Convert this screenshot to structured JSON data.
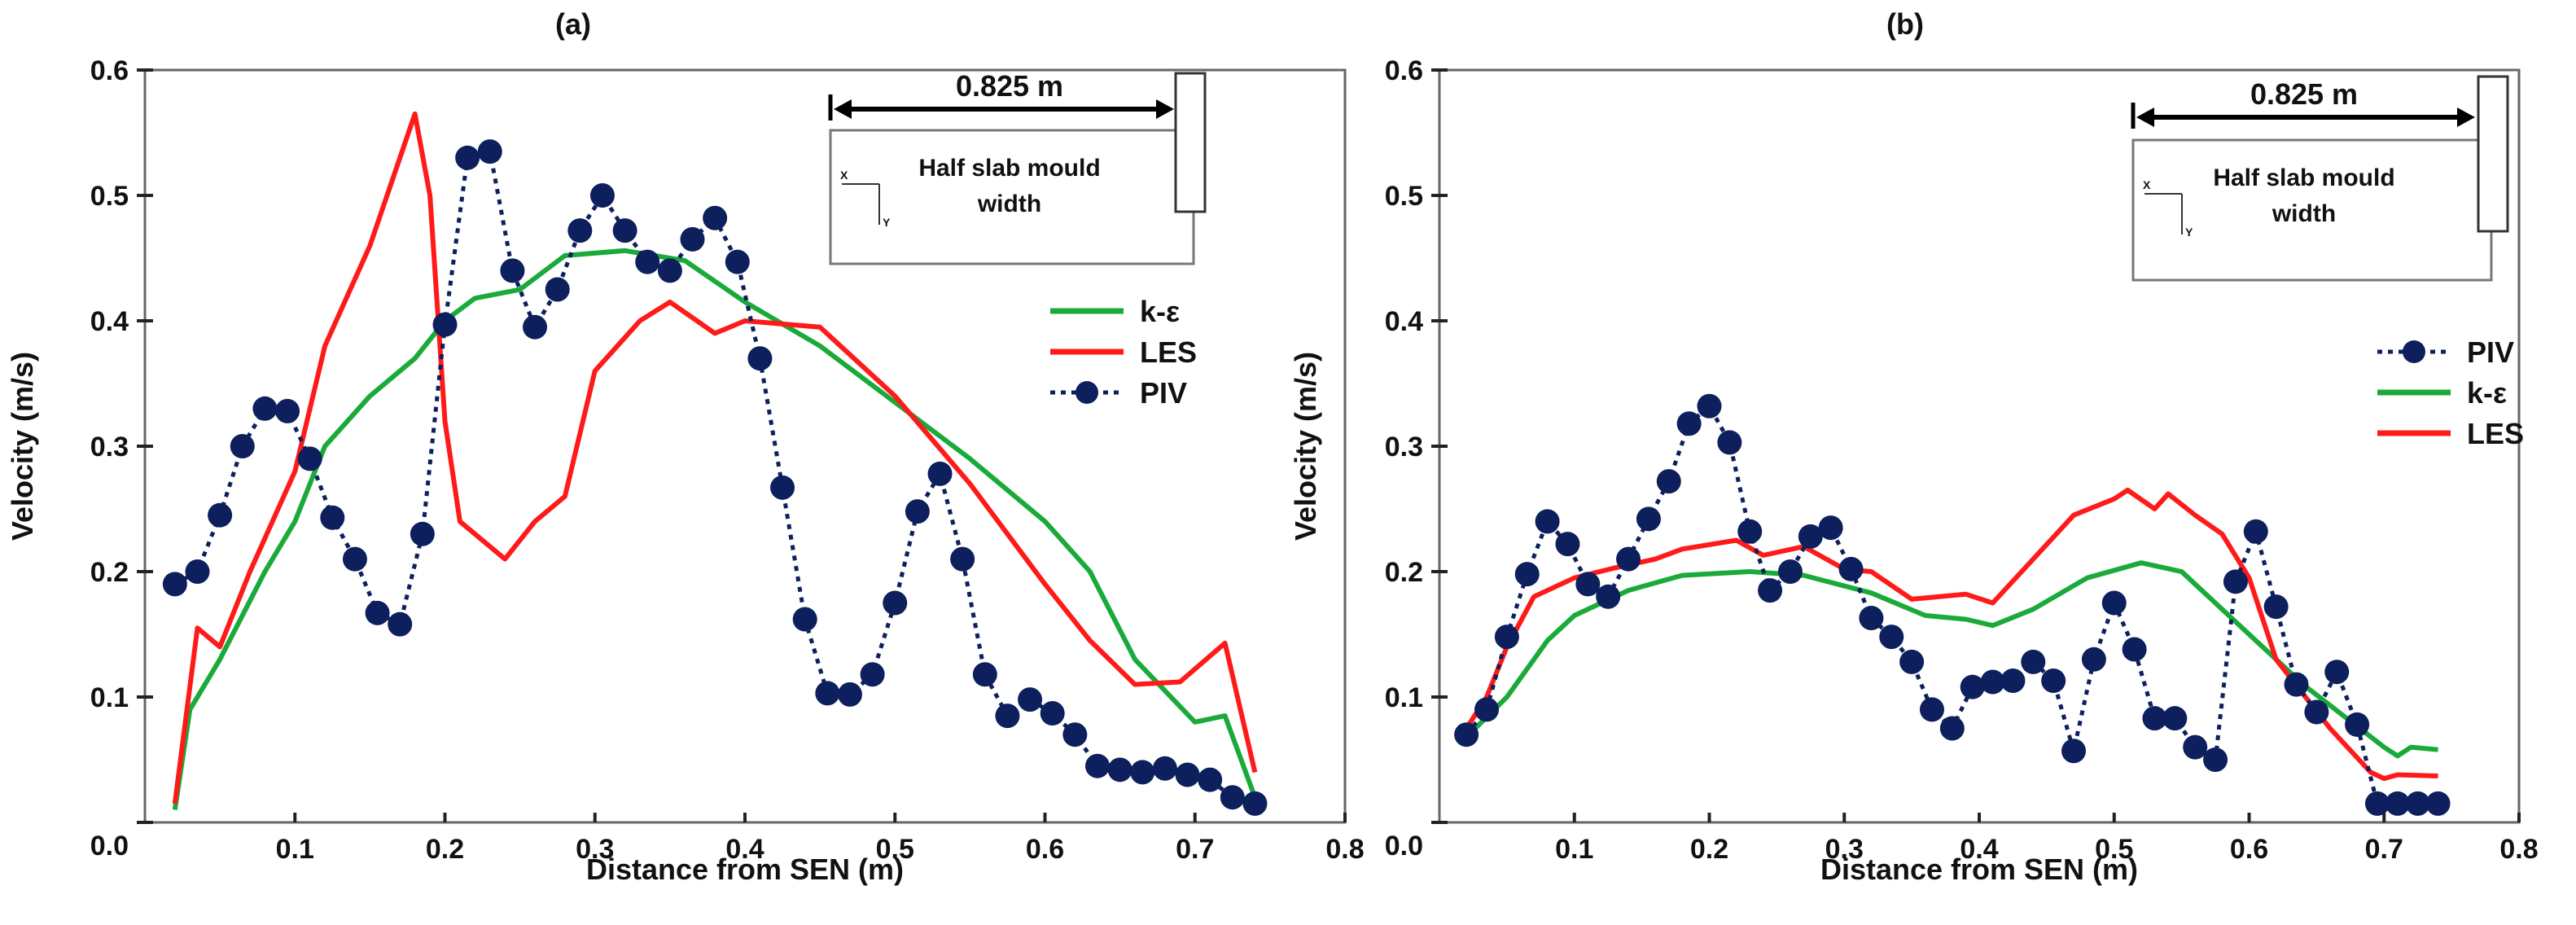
{
  "chart_data": [
    {
      "type": "line",
      "title": "(a)",
      "xlabel": "Distance from SEN (m)",
      "ylabel": "Velocity (m/s)",
      "xlim": [
        0,
        0.8
      ],
      "ylim": [
        0,
        0.6
      ],
      "xticks": [
        "0.1",
        "0.2",
        "0.3",
        "0.4",
        "0.5",
        "0.6",
        "0.7",
        "0.8"
      ],
      "yticks": [
        "0.0",
        "0.1",
        "0.2",
        "0.3",
        "0.4",
        "0.5",
        "0.6"
      ],
      "grid": false,
      "legend_position": "right",
      "legend_order": [
        "k-ε",
        "LES",
        "PIV"
      ],
      "inset": {
        "dimension": "0.825 m",
        "label_line1": "Half slab mould",
        "label_line2": "width",
        "axis_x": "X",
        "axis_y": "Y"
      },
      "series": [
        {
          "name": "k-ε",
          "color": "#1aaa3a",
          "style": "solid",
          "x": [
            0.02,
            0.03,
            0.05,
            0.08,
            0.1,
            0.12,
            0.15,
            0.18,
            0.2,
            0.22,
            0.25,
            0.28,
            0.32,
            0.36,
            0.4,
            0.45,
            0.5,
            0.55,
            0.6,
            0.63,
            0.66,
            0.7,
            0.72,
            0.74
          ],
          "y": [
            0.01,
            0.09,
            0.13,
            0.2,
            0.24,
            0.3,
            0.34,
            0.37,
            0.4,
            0.418,
            0.425,
            0.452,
            0.456,
            0.448,
            0.415,
            0.38,
            0.335,
            0.29,
            0.24,
            0.2,
            0.13,
            0.08,
            0.085,
            0.02
          ]
        },
        {
          "name": "LES",
          "color": "#ff1a1a",
          "style": "solid",
          "x": [
            0.02,
            0.035,
            0.05,
            0.07,
            0.1,
            0.12,
            0.15,
            0.18,
            0.19,
            0.2,
            0.21,
            0.24,
            0.26,
            0.28,
            0.3,
            0.33,
            0.35,
            0.38,
            0.4,
            0.45,
            0.5,
            0.55,
            0.6,
            0.63,
            0.66,
            0.69,
            0.72,
            0.74
          ],
          "y": [
            0.015,
            0.155,
            0.14,
            0.2,
            0.28,
            0.38,
            0.46,
            0.565,
            0.5,
            0.32,
            0.24,
            0.21,
            0.24,
            0.26,
            0.36,
            0.4,
            0.415,
            0.39,
            0.4,
            0.395,
            0.34,
            0.27,
            0.19,
            0.145,
            0.11,
            0.112,
            0.143,
            0.04
          ]
        },
        {
          "name": "PIV",
          "color": "#0d1f5c",
          "style": "dotted-markers",
          "x": [
            0.02,
            0.035,
            0.05,
            0.065,
            0.08,
            0.095,
            0.11,
            0.125,
            0.14,
            0.155,
            0.17,
            0.185,
            0.2,
            0.215,
            0.23,
            0.245,
            0.26,
            0.275,
            0.29,
            0.305,
            0.32,
            0.335,
            0.35,
            0.365,
            0.38,
            0.395,
            0.41,
            0.425,
            0.44,
            0.455,
            0.47,
            0.485,
            0.5,
            0.515,
            0.53,
            0.545,
            0.56,
            0.575,
            0.59,
            0.605,
            0.62,
            0.635,
            0.65,
            0.665,
            0.68,
            0.695,
            0.71,
            0.725,
            0.74
          ],
          "y": [
            0.19,
            0.2,
            0.245,
            0.3,
            0.33,
            0.328,
            0.29,
            0.243,
            0.21,
            0.167,
            0.158,
            0.23,
            0.397,
            0.53,
            0.535,
            0.44,
            0.395,
            0.425,
            0.472,
            0.5,
            0.472,
            0.447,
            0.44,
            0.465,
            0.482,
            0.447,
            0.37,
            0.267,
            0.162,
            0.103,
            0.102,
            0.118,
            0.175,
            0.248,
            0.278,
            0.21,
            0.118,
            0.085,
            0.098,
            0.087,
            0.07,
            0.045,
            0.042,
            0.04,
            0.043,
            0.038,
            0.034,
            0.02,
            0.015
          ]
        }
      ]
    },
    {
      "type": "line",
      "title": "(b)",
      "xlabel": "Distance from SEN (m)",
      "ylabel": "Velocity (m/s)",
      "xlim": [
        0,
        0.8
      ],
      "ylim": [
        0,
        0.6
      ],
      "xticks": [
        "0.1",
        "0.2",
        "0.3",
        "0.4",
        "0.5",
        "0.6",
        "0.7",
        "0.8"
      ],
      "yticks": [
        "0.0",
        "0.1",
        "0.2",
        "0.3",
        "0.4",
        "0.5",
        "0.6"
      ],
      "grid": false,
      "legend_position": "right",
      "legend_order": [
        "PIV",
        "k-ε",
        "LES"
      ],
      "inset": {
        "dimension": "0.825 m",
        "label_line1": "Half slab mould",
        "label_line2": "width",
        "axis_x": "X",
        "axis_y": "Y"
      },
      "series": [
        {
          "name": "k-ε",
          "color": "#1aaa3a",
          "style": "solid",
          "x": [
            0.02,
            0.05,
            0.08,
            0.1,
            0.14,
            0.18,
            0.23,
            0.27,
            0.32,
            0.36,
            0.39,
            0.41,
            0.44,
            0.48,
            0.52,
            0.55,
            0.58,
            0.61,
            0.64,
            0.67,
            0.7,
            0.71,
            0.72,
            0.74
          ],
          "y": [
            0.068,
            0.1,
            0.145,
            0.165,
            0.185,
            0.197,
            0.2,
            0.197,
            0.183,
            0.165,
            0.162,
            0.157,
            0.17,
            0.195,
            0.207,
            0.2,
            0.17,
            0.14,
            0.11,
            0.085,
            0.06,
            0.053,
            0.06,
            0.058
          ]
        },
        {
          "name": "LES",
          "color": "#ff1a1a",
          "style": "solid",
          "x": [
            0.02,
            0.035,
            0.05,
            0.07,
            0.1,
            0.13,
            0.16,
            0.18,
            0.22,
            0.24,
            0.27,
            0.3,
            0.32,
            0.35,
            0.39,
            0.41,
            0.44,
            0.47,
            0.5,
            0.51,
            0.53,
            0.54,
            0.56,
            0.58,
            0.6,
            0.62,
            0.66,
            0.69,
            0.7,
            0.71,
            0.74
          ],
          "y": [
            0.075,
            0.1,
            0.14,
            0.18,
            0.195,
            0.203,
            0.21,
            0.218,
            0.225,
            0.213,
            0.22,
            0.202,
            0.2,
            0.178,
            0.182,
            0.175,
            0.21,
            0.245,
            0.258,
            0.265,
            0.25,
            0.262,
            0.245,
            0.23,
            0.195,
            0.13,
            0.075,
            0.04,
            0.035,
            0.038,
            0.037
          ]
        },
        {
          "name": "PIV",
          "color": "#0d1f5c",
          "style": "dotted-markers",
          "x": [
            0.02,
            0.035,
            0.05,
            0.065,
            0.08,
            0.095,
            0.11,
            0.125,
            0.14,
            0.155,
            0.17,
            0.185,
            0.2,
            0.215,
            0.23,
            0.245,
            0.26,
            0.275,
            0.29,
            0.305,
            0.32,
            0.335,
            0.35,
            0.365,
            0.38,
            0.395,
            0.41,
            0.425,
            0.44,
            0.455,
            0.47,
            0.485,
            0.5,
            0.515,
            0.53,
            0.545,
            0.56,
            0.575,
            0.59,
            0.605,
            0.62,
            0.635,
            0.65,
            0.665,
            0.68,
            0.695,
            0.71,
            0.725,
            0.74
          ],
          "y": [
            0.07,
            0.09,
            0.148,
            0.198,
            0.24,
            0.222,
            0.19,
            0.18,
            0.21,
            0.242,
            0.272,
            0.318,
            0.332,
            0.303,
            0.232,
            0.185,
            0.2,
            0.228,
            0.235,
            0.202,
            0.163,
            0.148,
            0.128,
            0.09,
            0.075,
            0.108,
            0.112,
            0.113,
            0.128,
            0.113,
            0.057,
            0.13,
            0.175,
            0.138,
            0.083,
            0.083,
            0.06,
            0.05,
            0.192,
            0.232,
            0.172,
            0.11,
            0.088,
            0.12,
            0.078,
            0.015,
            0.015,
            0.015,
            0.015
          ]
        }
      ]
    }
  ]
}
